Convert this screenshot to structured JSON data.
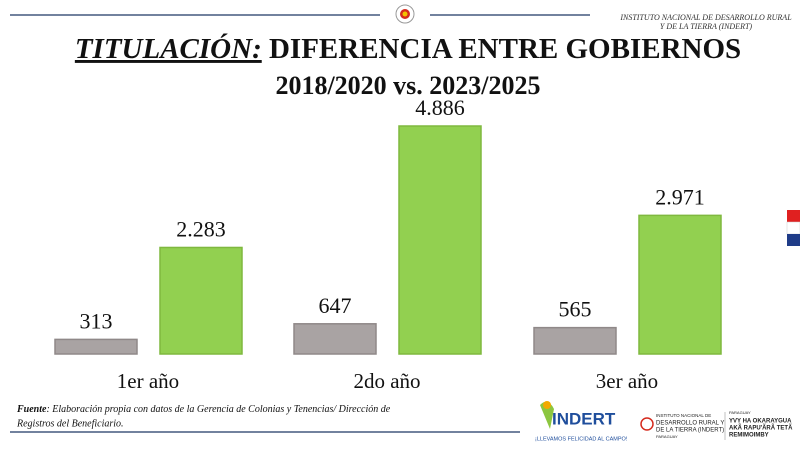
{
  "header": {
    "institution": [
      "INSTITUTO NACIONAL DE DESARROLLO RURAL",
      "Y DE LA TIERRA (INDERT)"
    ]
  },
  "chart_data": {
    "type": "bar",
    "title_emphasis": "TITULACIÓN:",
    "title": "DIFERENCIA ENTRE GOBIERNOS",
    "subtitle": "2018/2020 vs. 2023/2025",
    "categories": [
      "1er año",
      "2do año",
      "3er año"
    ],
    "series": [
      {
        "color": "#a9a3a3",
        "values": [
          313,
          647,
          565
        ],
        "value_labels": [
          "313",
          "647",
          "565"
        ]
      },
      {
        "color": "#92d050",
        "values": [
          2283,
          4886,
          2971
        ],
        "value_labels": [
          "2.283",
          "4.886",
          "2.971"
        ]
      }
    ]
  },
  "footer": {
    "source_label": "Fuente",
    "source_text": ":  Elaboración propia con datos de la Gerencia de Colonias y Tenencias/ Dirección de",
    "source_text_line2": "Registros del Beneficiario."
  },
  "logos": {
    "indert": "INDERT",
    "slogan": "¡LLEVAMOS FELICIDAD AL CAMPO!",
    "institute": [
      "INSTITUTO NACIONAL DE",
      "DESARROLLO RURAL Y",
      "DE LA TIERRA (INDERT)",
      "PARAGUAY"
    ],
    "motto": [
      "PARAGUAY",
      "YVY HA OKARAYGUA",
      "AKÃ RAPU'ÃRÃ TETÃ",
      "REMIMOIMBY"
    ]
  }
}
